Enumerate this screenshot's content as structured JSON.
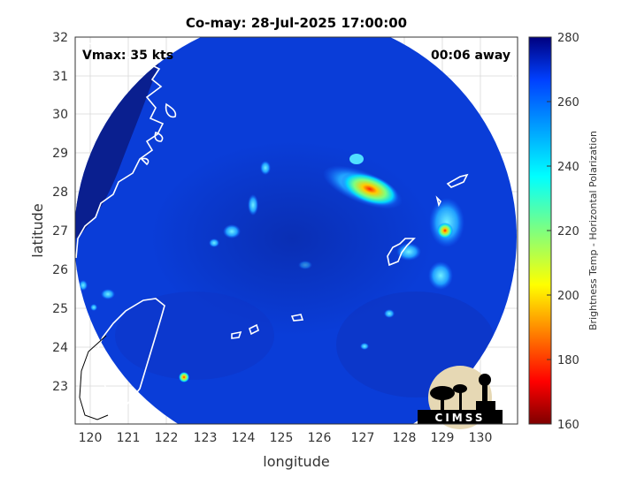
{
  "title": "Co-may: 28-Jul-2025 17:00:00",
  "overlay": {
    "vmax": "Vmax: 35 kts",
    "time_offset": "00:06 away"
  },
  "axes": {
    "xlabel": "longitude",
    "ylabel": "latitude",
    "xlim": [
      119.7,
      130.9
    ],
    "ylim": [
      22,
      32
    ],
    "xticks": [
      "120",
      "121",
      "122",
      "123",
      "124",
      "125",
      "126",
      "127",
      "128",
      "129",
      "130"
    ],
    "yticks": [
      "23",
      "24",
      "25",
      "26",
      "27",
      "28",
      "29",
      "30",
      "31",
      "32"
    ]
  },
  "colorbar": {
    "label": "Brightness Temp - Horizontal Polarization",
    "range": [
      160,
      280
    ],
    "ticks": [
      "160",
      "180",
      "200",
      "220",
      "240",
      "260",
      "280"
    ]
  },
  "logo": {
    "text": "CIMSS"
  },
  "colors": {
    "background_blue": "#0a3dd8",
    "deep_navy": "#0a1f8f",
    "warm_core": "#ff2000"
  }
}
